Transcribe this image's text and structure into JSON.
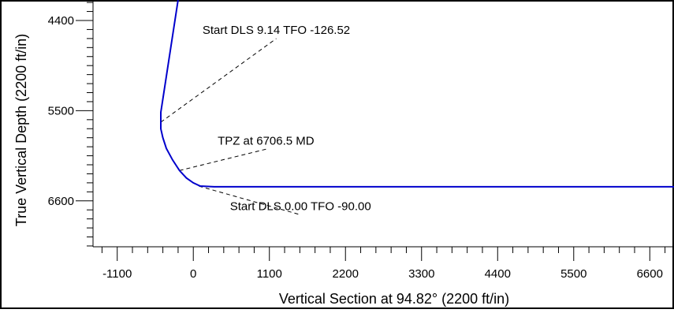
{
  "chart_data": {
    "type": "line",
    "title": "",
    "xlabel": "Vertical Section at 94.82° (2200 ft/in)",
    "ylabel": "True Vertical Depth (2200 ft/in)",
    "xlim": [
      -1450,
      6950
    ],
    "ylim": [
      4150,
      7160
    ],
    "y_inverted": true,
    "grid": false,
    "x_ticks": [
      -1100,
      0,
      1100,
      2200,
      3300,
      4400,
      5500,
      6600
    ],
    "y_ticks": [
      4400,
      5500,
      6600
    ],
    "series": [
      {
        "color": "#0000cc",
        "points": [
          [
            -220,
            4150
          ],
          [
            -470,
            5520
          ],
          [
            -470,
            5720
          ],
          [
            -440,
            5830
          ],
          [
            -390,
            5960
          ],
          [
            -300,
            6100
          ],
          [
            -200,
            6230
          ],
          [
            -100,
            6320
          ],
          [
            0,
            6380
          ],
          [
            100,
            6420
          ],
          [
            300,
            6428
          ],
          [
            6950,
            6428
          ]
        ]
      }
    ],
    "annotations": [
      {
        "text": "Start DLS 9.14 TFO -126.52",
        "x": 1200,
        "y": 4620,
        "target_x": -470,
        "target_y": 5640
      },
      {
        "text": "TPZ at 6706.5 MD",
        "x": 1050,
        "y": 5970,
        "target_x": -200,
        "target_y": 6230
      },
      {
        "text": "Start DLS 0.00 TFO -90.00",
        "x": 1550,
        "y": 6770,
        "target_x": 80,
        "target_y": 6420
      }
    ]
  }
}
